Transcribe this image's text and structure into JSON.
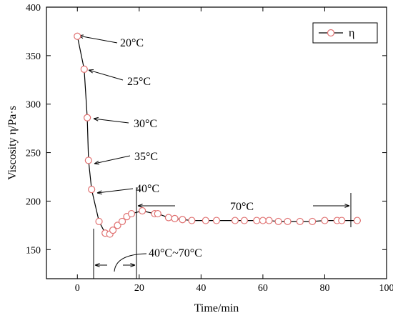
{
  "chart_data": {
    "type": "line",
    "xlabel": "Time/min",
    "ylabel": "Viscosity η/Pa·s",
    "xlim": [
      -10,
      100
    ],
    "ylim": [
      120,
      400
    ],
    "x_ticks": [
      0,
      20,
      40,
      60,
      80,
      100
    ],
    "y_ticks": [
      150,
      200,
      250,
      300,
      350,
      400
    ],
    "grid": false,
    "legend": {
      "position": "top-right",
      "entries": [
        "η"
      ]
    },
    "series": [
      {
        "name": "η",
        "color": "#e07070",
        "points": [
          [
            0,
            370
          ],
          [
            2.2,
            336
          ],
          [
            3.2,
            286
          ],
          [
            3.6,
            242
          ],
          [
            4.6,
            212
          ],
          [
            7,
            179
          ],
          [
            9,
            167
          ],
          [
            10.5,
            166
          ],
          [
            11.5,
            170
          ],
          [
            13,
            175
          ],
          [
            14.5,
            179
          ],
          [
            16,
            184
          ],
          [
            17.5,
            187
          ],
          [
            21,
            190
          ],
          [
            25,
            187
          ],
          [
            26,
            187
          ],
          [
            29.5,
            183
          ],
          [
            31.5,
            182
          ],
          [
            34,
            181
          ],
          [
            37,
            180
          ],
          [
            41.5,
            180
          ],
          [
            45,
            180
          ],
          [
            51,
            180
          ],
          [
            54,
            180
          ],
          [
            58,
            180
          ],
          [
            60,
            180
          ],
          [
            62,
            180
          ],
          [
            65,
            179
          ],
          [
            68,
            179
          ],
          [
            72,
            179
          ],
          [
            76,
            179
          ],
          [
            80,
            180
          ],
          [
            84,
            180
          ],
          [
            85.5,
            180
          ],
          [
            90.5,
            180
          ]
        ]
      }
    ],
    "annotations": [
      {
        "text": "20°C"
      },
      {
        "text": "25°C"
      },
      {
        "text": "30°C"
      },
      {
        "text": "35°C"
      },
      {
        "text": "40°C"
      },
      {
        "text": "70°C"
      },
      {
        "text": "40°C~70°C"
      }
    ]
  }
}
